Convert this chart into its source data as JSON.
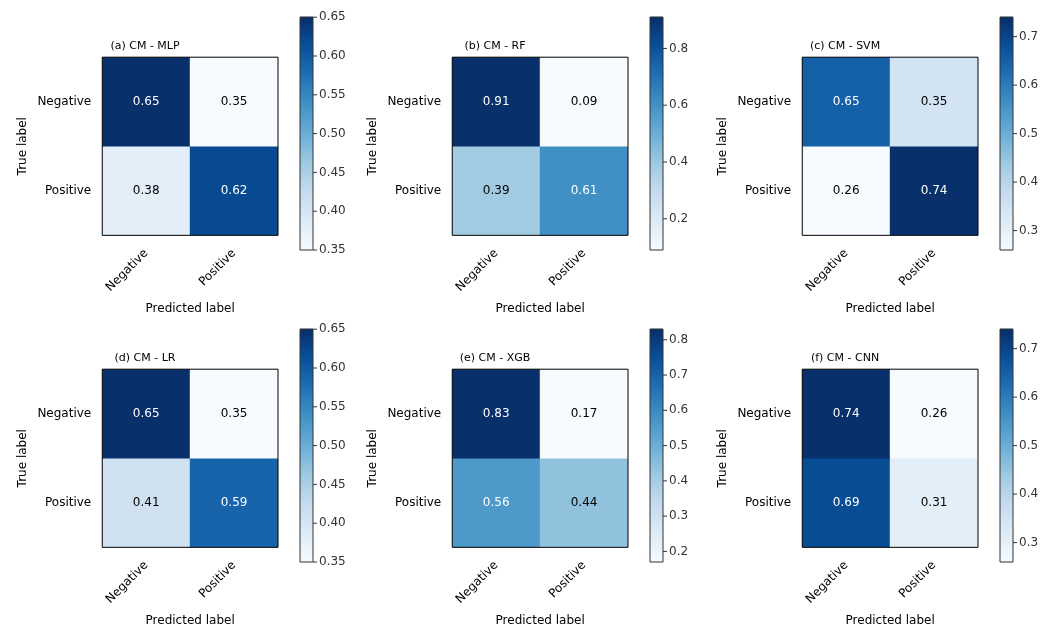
{
  "chart_data": [
    {
      "type": "heatmap",
      "title": "(a) CM - MLP",
      "xlabel": "Predicted label",
      "ylabel": "True label",
      "categories": [
        "Negative",
        "Positive"
      ],
      "y_categories": [
        "Negative",
        "Positive"
      ],
      "cells": [
        [
          0.65,
          0.35
        ],
        [
          0.38,
          0.62
        ]
      ],
      "data_labels": true,
      "clim": [
        0.35,
        0.65
      ],
      "cticks": [
        0.35,
        {
          "value": 0.4,
          "label": "0.40"
        },
        0.45,
        {
          "value": 0.5,
          "label": "0.50"
        },
        0.55,
        {
          "value": 0.6,
          "label": "0.60"
        },
        0.65
      ]
    },
    {
      "type": "heatmap",
      "title": "(b) CM - RF",
      "xlabel": "Predicted label",
      "ylabel": "True label",
      "categories": [
        "Negative",
        "Positive"
      ],
      "y_categories": [
        "Negative",
        "Positive"
      ],
      "cells": [
        [
          0.91,
          0.09
        ],
        [
          0.39,
          0.61
        ]
      ],
      "data_labels": true,
      "clim": [
        0.09,
        0.91
      ],
      "cticks": [
        0.2,
        0.4,
        0.6,
        0.8
      ]
    },
    {
      "type": "heatmap",
      "title": "(c) CM - SVM",
      "xlabel": "Predicted label",
      "ylabel": "True label",
      "categories": [
        "Negative",
        "Positive"
      ],
      "y_categories": [
        "Negative",
        "Positive"
      ],
      "cells": [
        [
          0.65,
          0.35
        ],
        [
          0.26,
          0.74
        ]
      ],
      "data_labels": true,
      "clim": [
        0.26,
        0.74
      ],
      "cticks": [
        0.3,
        0.4,
        0.5,
        0.6,
        0.7
      ]
    },
    {
      "type": "heatmap",
      "title": "(d) CM - LR",
      "xlabel": "Predicted label",
      "ylabel": "True label",
      "categories": [
        "Negative",
        "Positive"
      ],
      "y_categories": [
        "Negative",
        "Positive"
      ],
      "cells": [
        [
          0.65,
          0.35
        ],
        [
          0.41,
          0.59
        ]
      ],
      "data_labels": true,
      "clim": [
        0.35,
        0.65
      ],
      "cticks": [
        0.35,
        {
          "value": 0.4,
          "label": "0.40"
        },
        0.45,
        {
          "value": 0.5,
          "label": "0.50"
        },
        0.55,
        {
          "value": 0.6,
          "label": "0.60"
        },
        0.65
      ]
    },
    {
      "type": "heatmap",
      "title": "(e) CM - XGB",
      "xlabel": "Predicted label",
      "ylabel": "True label",
      "categories": [
        "Negative",
        "Positive"
      ],
      "y_categories": [
        "Negative",
        "Positive"
      ],
      "cells": [
        [
          0.83,
          0.17
        ],
        [
          0.56,
          0.44
        ]
      ],
      "data_labels": true,
      "clim": [
        0.17,
        0.83
      ],
      "cticks": [
        0.2,
        0.3,
        0.4,
        0.5,
        0.6,
        0.7,
        0.8
      ]
    },
    {
      "type": "heatmap",
      "title": "(f) CM - CNN",
      "xlabel": "Predicted label",
      "ylabel": "True label",
      "categories": [
        "Negative",
        "Positive"
      ],
      "y_categories": [
        "Negative",
        "Positive"
      ],
      "cells": [
        [
          0.74,
          0.26
        ],
        [
          0.69,
          0.31
        ]
      ],
      "data_labels": true,
      "clim": [
        0.26,
        0.74
      ],
      "cticks": [
        0.3,
        0.4,
        0.5,
        0.6,
        0.7
      ]
    }
  ]
}
